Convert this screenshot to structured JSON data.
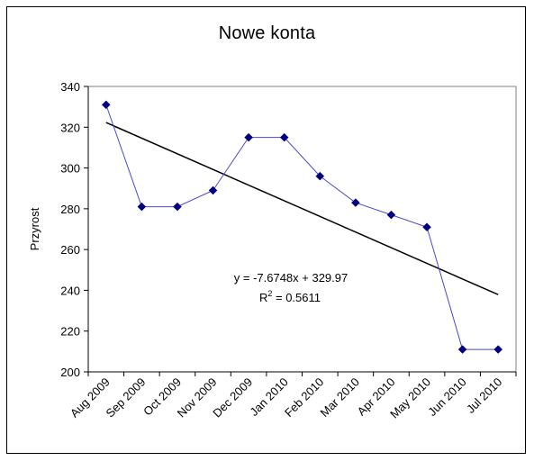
{
  "chart_data": {
    "type": "line",
    "title": "Nowe konta",
    "xlabel": "",
    "ylabel": "Przyrost",
    "ylim": [
      200,
      340
    ],
    "yticks": [
      200,
      220,
      240,
      260,
      280,
      300,
      320,
      340
    ],
    "categories": [
      "Aug 2009",
      "Sep 2009",
      "Oct 2009",
      "Nov 2009",
      "Dec 2009",
      "Jan 2010",
      "Feb 2010",
      "Mar 2010",
      "Apr 2010",
      "May 2010",
      "Jun 2010",
      "Jul 2010"
    ],
    "series": [
      {
        "values": [
          331,
          281,
          281,
          289,
          315,
          315,
          296,
          283,
          277,
          271,
          211,
          211
        ],
        "color": "#00007f",
        "marker": "diamond"
      }
    ],
    "trendline": {
      "type": "linear",
      "slope": -7.6748,
      "intercept": 329.97,
      "color": "#000000",
      "equation_label": "y = -7.6748x + 329.97",
      "r2_label_prefix": "R",
      "r2_label_suffix": " = 0.5611"
    },
    "grid": false,
    "legend": "none"
  }
}
